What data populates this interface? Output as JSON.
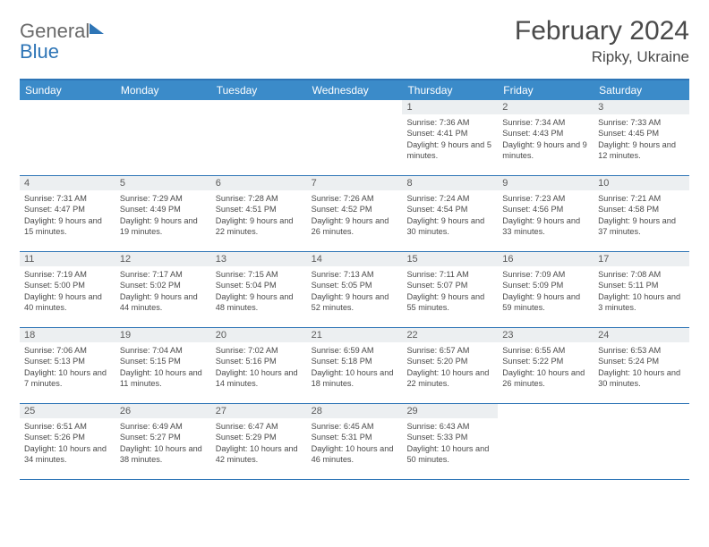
{
  "logo": {
    "word1": "General",
    "word2": "Blue"
  },
  "title": "February 2024",
  "location": "Ripky, Ukraine",
  "day_headers": [
    "Sunday",
    "Monday",
    "Tuesday",
    "Wednesday",
    "Thursday",
    "Friday",
    "Saturday"
  ],
  "colors": {
    "accent": "#2e75b6",
    "header_bg": "#3b8bc9",
    "daynum_bg": "#eceff1",
    "text": "#4a4a4a"
  },
  "weeks": [
    [
      {},
      {},
      {},
      {},
      {
        "n": "1",
        "sr": "7:36 AM",
        "ss": "4:41 PM",
        "dl": "9 hours and 5 minutes."
      },
      {
        "n": "2",
        "sr": "7:34 AM",
        "ss": "4:43 PM",
        "dl": "9 hours and 9 minutes."
      },
      {
        "n": "3",
        "sr": "7:33 AM",
        "ss": "4:45 PM",
        "dl": "9 hours and 12 minutes."
      }
    ],
    [
      {
        "n": "4",
        "sr": "7:31 AM",
        "ss": "4:47 PM",
        "dl": "9 hours and 15 minutes."
      },
      {
        "n": "5",
        "sr": "7:29 AM",
        "ss": "4:49 PM",
        "dl": "9 hours and 19 minutes."
      },
      {
        "n": "6",
        "sr": "7:28 AM",
        "ss": "4:51 PM",
        "dl": "9 hours and 22 minutes."
      },
      {
        "n": "7",
        "sr": "7:26 AM",
        "ss": "4:52 PM",
        "dl": "9 hours and 26 minutes."
      },
      {
        "n": "8",
        "sr": "7:24 AM",
        "ss": "4:54 PM",
        "dl": "9 hours and 30 minutes."
      },
      {
        "n": "9",
        "sr": "7:23 AM",
        "ss": "4:56 PM",
        "dl": "9 hours and 33 minutes."
      },
      {
        "n": "10",
        "sr": "7:21 AM",
        "ss": "4:58 PM",
        "dl": "9 hours and 37 minutes."
      }
    ],
    [
      {
        "n": "11",
        "sr": "7:19 AM",
        "ss": "5:00 PM",
        "dl": "9 hours and 40 minutes."
      },
      {
        "n": "12",
        "sr": "7:17 AM",
        "ss": "5:02 PM",
        "dl": "9 hours and 44 minutes."
      },
      {
        "n": "13",
        "sr": "7:15 AM",
        "ss": "5:04 PM",
        "dl": "9 hours and 48 minutes."
      },
      {
        "n": "14",
        "sr": "7:13 AM",
        "ss": "5:05 PM",
        "dl": "9 hours and 52 minutes."
      },
      {
        "n": "15",
        "sr": "7:11 AM",
        "ss": "5:07 PM",
        "dl": "9 hours and 55 minutes."
      },
      {
        "n": "16",
        "sr": "7:09 AM",
        "ss": "5:09 PM",
        "dl": "9 hours and 59 minutes."
      },
      {
        "n": "17",
        "sr": "7:08 AM",
        "ss": "5:11 PM",
        "dl": "10 hours and 3 minutes."
      }
    ],
    [
      {
        "n": "18",
        "sr": "7:06 AM",
        "ss": "5:13 PM",
        "dl": "10 hours and 7 minutes."
      },
      {
        "n": "19",
        "sr": "7:04 AM",
        "ss": "5:15 PM",
        "dl": "10 hours and 11 minutes."
      },
      {
        "n": "20",
        "sr": "7:02 AM",
        "ss": "5:16 PM",
        "dl": "10 hours and 14 minutes."
      },
      {
        "n": "21",
        "sr": "6:59 AM",
        "ss": "5:18 PM",
        "dl": "10 hours and 18 minutes."
      },
      {
        "n": "22",
        "sr": "6:57 AM",
        "ss": "5:20 PM",
        "dl": "10 hours and 22 minutes."
      },
      {
        "n": "23",
        "sr": "6:55 AM",
        "ss": "5:22 PM",
        "dl": "10 hours and 26 minutes."
      },
      {
        "n": "24",
        "sr": "6:53 AM",
        "ss": "5:24 PM",
        "dl": "10 hours and 30 minutes."
      }
    ],
    [
      {
        "n": "25",
        "sr": "6:51 AM",
        "ss": "5:26 PM",
        "dl": "10 hours and 34 minutes."
      },
      {
        "n": "26",
        "sr": "6:49 AM",
        "ss": "5:27 PM",
        "dl": "10 hours and 38 minutes."
      },
      {
        "n": "27",
        "sr": "6:47 AM",
        "ss": "5:29 PM",
        "dl": "10 hours and 42 minutes."
      },
      {
        "n": "28",
        "sr": "6:45 AM",
        "ss": "5:31 PM",
        "dl": "10 hours and 46 minutes."
      },
      {
        "n": "29",
        "sr": "6:43 AM",
        "ss": "5:33 PM",
        "dl": "10 hours and 50 minutes."
      },
      {},
      {}
    ]
  ],
  "labels": {
    "sunrise": "Sunrise:",
    "sunset": "Sunset:",
    "daylight": "Daylight:"
  }
}
